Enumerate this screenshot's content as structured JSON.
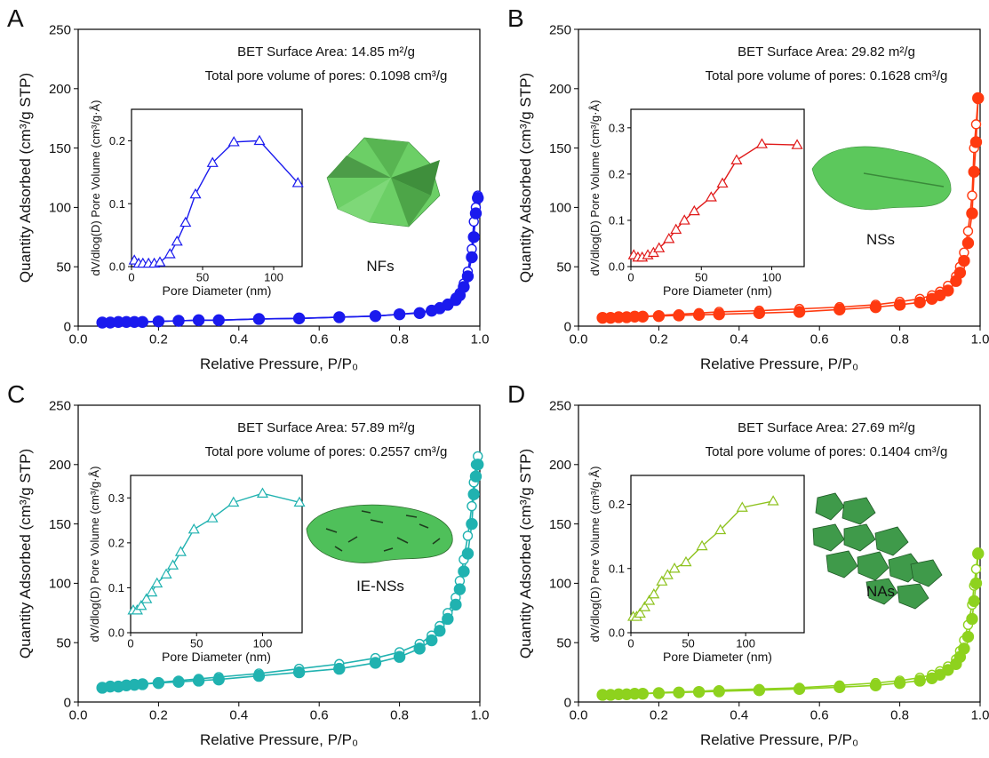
{
  "chart_data": [
    {
      "type": "line",
      "label": "A",
      "annotations": [
        "BET Surface Area: 14.85 m²/g",
        "Total pore volume of pores: 0.1098 cm³/g"
      ],
      "shape_label": "NFs",
      "xlabel": "Relative Pressure, P/P₀",
      "ylabel": "Quantity Adsorbed (cm³/g STP)",
      "xlim": [
        0,
        1
      ],
      "xticks": [
        {
          "value": 0,
          "label": "0.0"
        },
        0.2,
        0.4,
        0.6,
        0.8,
        {
          "value": 1,
          "label": "1.0"
        }
      ],
      "ylim": [
        0,
        250
      ],
      "yticks": [
        0,
        50,
        100,
        150,
        200,
        250
      ],
      "x": [
        0.06,
        0.08,
        0.1,
        0.12,
        0.14,
        0.16,
        0.2,
        0.25,
        0.3,
        0.35,
        0.45,
        0.55,
        0.65,
        0.74,
        0.8,
        0.85,
        0.88,
        0.9,
        0.92,
        0.94,
        0.95,
        0.96,
        0.97,
        0.98,
        0.985,
        0.99,
        0.995
      ],
      "series": [
        {
          "color": "#1a1aee",
          "marker": "filled",
          "values": [
            3,
            3,
            3.5,
            3.5,
            3.5,
            3.5,
            4,
            4.5,
            5,
            5,
            6,
            6.5,
            7.5,
            8.5,
            10,
            11,
            13,
            15,
            18,
            22,
            26,
            33,
            42,
            58,
            75,
            95,
            108
          ]
        },
        {
          "color": "#1a1aee",
          "marker": "open",
          "values": [
            3,
            3,
            3.5,
            3.5,
            3.5,
            3.5,
            4,
            4.5,
            5,
            5,
            6,
            6.5,
            7.5,
            8.5,
            10,
            11.5,
            13.5,
            16,
            19,
            24,
            28,
            36,
            46,
            65,
            88,
            100,
            110
          ]
        }
      ],
      "inset": {
        "type": "line",
        "color": "#1a1aee",
        "marker": "triangle",
        "xlabel": "Pore Diameter (nm)",
        "ylabel": "dV/dlog(D) Pore Volume (cm³/g·Å)",
        "xlim": [
          0,
          120
        ],
        "xticks": [
          0,
          50,
          100
        ],
        "ylim": [
          0,
          0.25
        ],
        "yticks": [
          {
            "value": 0,
            "label": "0.0"
          },
          0.1,
          0.2
        ],
        "x": [
          2,
          5,
          8,
          12,
          16,
          20,
          27,
          32,
          38,
          45,
          57,
          72,
          90,
          117
        ],
        "values": [
          0.01,
          0.005,
          0.005,
          0.005,
          0.005,
          0.007,
          0.02,
          0.04,
          0.07,
          0.115,
          0.165,
          0.198,
          0.2,
          0.133
        ]
      }
    },
    {
      "type": "line",
      "label": "B",
      "annotations": [
        "BET Surface Area: 29.82 m²/g",
        "Total pore volume of pores: 0.1628 cm³/g"
      ],
      "shape_label": "NSs",
      "xlabel": "Relative Pressure, P/P₀",
      "ylabel": "Quantity Adsorbed (cm³/g STP)",
      "xlim": [
        0,
        1
      ],
      "xticks": [
        {
          "value": 0,
          "label": "0.0"
        },
        0.2,
        0.4,
        0.6,
        0.8,
        {
          "value": 1,
          "label": "1.0"
        }
      ],
      "ylim": [
        0,
        250
      ],
      "yticks": [
        0,
        50,
        100,
        150,
        200,
        250
      ],
      "x": [
        0.06,
        0.08,
        0.1,
        0.12,
        0.14,
        0.16,
        0.2,
        0.25,
        0.3,
        0.35,
        0.45,
        0.55,
        0.65,
        0.74,
        0.8,
        0.85,
        0.88,
        0.9,
        0.92,
        0.94,
        0.95,
        0.96,
        0.97,
        0.98,
        0.985,
        0.99,
        0.995
      ],
      "series": [
        {
          "color": "#ff3a10",
          "marker": "filled",
          "values": [
            7,
            7,
            7.5,
            7.5,
            8,
            8,
            8.5,
            9,
            9.5,
            10,
            11,
            12,
            14,
            16,
            18,
            20,
            23,
            26,
            30,
            38,
            45,
            55,
            70,
            95,
            130,
            155,
            192
          ]
        },
        {
          "color": "#ff3a10",
          "marker": "open",
          "values": [
            7,
            7,
            7.5,
            7.5,
            8,
            8,
            9,
            10,
            11,
            12,
            13,
            14.5,
            16,
            18,
            20.5,
            23,
            26,
            29,
            34,
            42,
            50,
            62,
            80,
            110,
            150,
            170,
            192
          ]
        }
      ],
      "inset": {
        "type": "line",
        "color": "#e01818",
        "marker": "triangle",
        "xlabel": "Pore Diameter (nm)",
        "ylabel": "dV/dlog(D) Pore Volume (cm³/g·Å)",
        "xlim": [
          0,
          123
        ],
        "xticks": [
          0,
          50,
          100
        ],
        "ylim": [
          0,
          0.34
        ],
        "yticks": [
          {
            "value": 0,
            "label": "0.0"
          },
          0.1,
          0.2,
          0.3
        ],
        "x": [
          2,
          5,
          8,
          12,
          16,
          20,
          27,
          32,
          38,
          45,
          57,
          65,
          75,
          93,
          118
        ],
        "values": [
          0.025,
          0.02,
          0.02,
          0.025,
          0.03,
          0.04,
          0.06,
          0.08,
          0.1,
          0.12,
          0.15,
          0.18,
          0.23,
          0.265,
          0.263
        ]
      }
    },
    {
      "type": "line",
      "label": "C",
      "annotations": [
        "BET Surface Area: 57.89 m²/g",
        "Total pore volume of pores: 0.2557 cm³/g"
      ],
      "shape_label": "IE-NSs",
      "xlabel": "Relative Pressure, P/P₀",
      "ylabel": "Quantity Adsorbed (cm³/g STP)",
      "xlim": [
        0,
        1
      ],
      "xticks": [
        {
          "value": 0,
          "label": "0.0"
        },
        0.2,
        0.4,
        0.6,
        0.8,
        {
          "value": 1,
          "label": "1.0"
        }
      ],
      "ylim": [
        0,
        250
      ],
      "yticks": [
        0,
        50,
        100,
        150,
        200,
        250
      ],
      "x": [
        0.06,
        0.08,
        0.1,
        0.12,
        0.14,
        0.16,
        0.2,
        0.25,
        0.3,
        0.35,
        0.45,
        0.55,
        0.65,
        0.74,
        0.8,
        0.85,
        0.88,
        0.9,
        0.92,
        0.94,
        0.95,
        0.96,
        0.97,
        0.98,
        0.985,
        0.99,
        0.995
      ],
      "series": [
        {
          "color": "#20b2b0",
          "marker": "filled",
          "values": [
            12,
            13,
            13,
            14,
            14.5,
            15,
            16,
            17,
            18,
            19,
            22,
            25,
            28,
            33,
            38,
            45,
            52,
            60,
            70,
            82,
            95,
            110,
            125,
            150,
            175,
            190,
            200
          ]
        },
        {
          "color": "#20b2b0",
          "marker": "open",
          "values": [
            12,
            13,
            13,
            14,
            14.5,
            15,
            16.5,
            18,
            19.5,
            21,
            24,
            28,
            32,
            37,
            42,
            49,
            56,
            64,
            75,
            88,
            102,
            120,
            140,
            165,
            185,
            200,
            207
          ]
        }
      ],
      "inset": {
        "type": "line",
        "color": "#20b2b0",
        "marker": "triangle",
        "xlabel": "Pore Diameter (nm)",
        "ylabel": "dV/dlog(D) Pore Volume (cm³/g·Å)",
        "xlim": [
          0,
          130
        ],
        "xticks": [
          0,
          50,
          100
        ],
        "ylim": [
          0,
          0.35
        ],
        "yticks": [
          {
            "value": 0,
            "label": "0.0"
          },
          0.1,
          0.2,
          0.3
        ],
        "x": [
          2,
          5,
          8,
          12,
          16,
          20,
          27,
          32,
          38,
          48,
          62,
          78,
          100,
          128
        ],
        "values": [
          0.05,
          0.05,
          0.06,
          0.075,
          0.09,
          0.11,
          0.13,
          0.15,
          0.18,
          0.23,
          0.255,
          0.29,
          0.31,
          0.29
        ]
      }
    },
    {
      "type": "line",
      "label": "D",
      "annotations": [
        "BET Surface Area: 27.69 m²/g",
        "Total pore volume of pores: 0.1404 cm³/g"
      ],
      "shape_label": "NAs",
      "xlabel": "Relative Pressure, P/P₀",
      "ylabel": "Quantity Adsorbed (cm³/g STP)",
      "xlim": [
        0,
        1
      ],
      "xticks": [
        {
          "value": 0,
          "label": "0.0"
        },
        0.2,
        0.4,
        0.6,
        0.8,
        {
          "value": 1,
          "label": "1.0"
        }
      ],
      "ylim": [
        0,
        250
      ],
      "yticks": [
        0,
        50,
        100,
        150,
        200,
        250
      ],
      "x": [
        0.06,
        0.08,
        0.1,
        0.12,
        0.14,
        0.16,
        0.2,
        0.25,
        0.3,
        0.35,
        0.45,
        0.55,
        0.65,
        0.74,
        0.8,
        0.85,
        0.88,
        0.9,
        0.92,
        0.94,
        0.95,
        0.96,
        0.97,
        0.98,
        0.985,
        0.99,
        0.995
      ],
      "series": [
        {
          "color": "#8ed21e",
          "marker": "filled",
          "values": [
            6,
            6,
            6.5,
            6.5,
            7,
            7,
            7.5,
            8,
            8.5,
            9,
            10,
            11,
            12.5,
            14,
            16,
            18,
            20,
            23,
            27,
            32,
            38,
            45,
            55,
            70,
            85,
            100,
            125
          ]
        },
        {
          "color": "#8ed21e",
          "marker": "open",
          "values": [
            6,
            6,
            6.5,
            6.5,
            7,
            7,
            8,
            8.5,
            9,
            10,
            11,
            12,
            14,
            16,
            18,
            20.5,
            23,
            26,
            30,
            36,
            43,
            52,
            65,
            82,
            98,
            112,
            126
          ]
        }
      ],
      "inset": {
        "type": "line",
        "color": "#8ec21e",
        "marker": "triangle",
        "xlabel": "Pore Diameter (nm)",
        "ylabel": "dV/dlog(D) Pore Volume (cm³/g·Å)",
        "xlim": [
          0,
          151
        ],
        "xticks": [
          0,
          50,
          100
        ],
        "ylim": [
          0,
          0.245
        ],
        "yticks": [
          {
            "value": 0,
            "label": "0.0"
          },
          0.1,
          0.2
        ],
        "x": [
          2,
          5,
          8,
          12,
          16,
          20,
          27,
          32,
          38,
          48,
          62,
          78,
          97,
          124
        ],
        "values": [
          0.025,
          0.025,
          0.03,
          0.04,
          0.05,
          0.06,
          0.08,
          0.09,
          0.1,
          0.11,
          0.135,
          0.16,
          0.195,
          0.205
        ]
      }
    }
  ]
}
